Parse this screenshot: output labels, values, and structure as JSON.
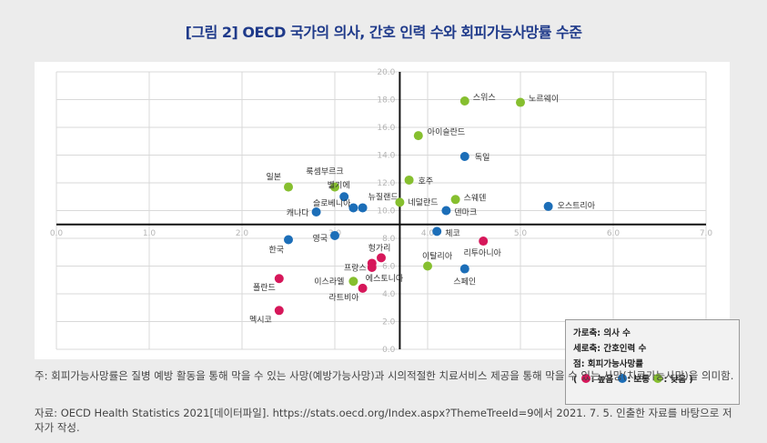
{
  "title": "[그림 2] OECD 국가의 의사, 간호 인력 수와 회피가능사망률 수준",
  "chart_data": {
    "type": "scatter",
    "xlim": [
      0,
      7
    ],
    "ylim": [
      0,
      20
    ],
    "x_ticks": [
      "0.0",
      "1.0",
      "2.0",
      "3.0",
      "4.0",
      "5.0",
      "6.0",
      "7.0"
    ],
    "y_ticks": [
      "0.0",
      "2.0",
      "4.0",
      "6.0",
      "8.0",
      "10.0",
      "12.0",
      "14.0",
      "16.0",
      "18.0",
      "20.0"
    ],
    "x_axis_cross": 9.0,
    "y_axis_cross": 3.7,
    "grid": true,
    "colors": {
      "high": "#d6175a",
      "medium": "#1c6eb8",
      "low": "#86bf2f"
    },
    "points": [
      {
        "label": "스위스",
        "x": 4.4,
        "y": 17.9,
        "level": "low"
      },
      {
        "label": "노르웨이",
        "x": 5.0,
        "y": 17.8,
        "level": "low"
      },
      {
        "label": "아이슬란드",
        "x": 3.9,
        "y": 15.4,
        "level": "low"
      },
      {
        "label": "독일",
        "x": 4.4,
        "y": 13.9,
        "level": "medium"
      },
      {
        "label": "룩셈부르크",
        "x": 3.0,
        "y": 11.7,
        "level": "low"
      },
      {
        "label": "일본",
        "x": 2.5,
        "y": 11.7,
        "level": "low"
      },
      {
        "label": "호주",
        "x": 3.8,
        "y": 12.2,
        "level": "low"
      },
      {
        "label": "벨기에",
        "x": 3.1,
        "y": 11.0,
        "level": "medium"
      },
      {
        "label": "뉴질랜드",
        "x": 3.3,
        "y": 10.2,
        "level": "medium"
      },
      {
        "label": "슬로베니아",
        "x": 3.2,
        "y": 10.2,
        "level": "medium"
      },
      {
        "label": "네덜란드",
        "x": 3.7,
        "y": 10.6,
        "level": "low"
      },
      {
        "label": "스웨덴",
        "x": 4.3,
        "y": 10.8,
        "level": "low"
      },
      {
        "label": "오스트리아",
        "x": 5.3,
        "y": 10.3,
        "level": "medium"
      },
      {
        "label": "캐나다",
        "x": 2.8,
        "y": 9.9,
        "level": "medium"
      },
      {
        "label": "덴마크",
        "x": 4.2,
        "y": 10.0,
        "level": "medium"
      },
      {
        "label": "체코",
        "x": 4.1,
        "y": 8.5,
        "level": "medium"
      },
      {
        "label": "한국",
        "x": 2.5,
        "y": 7.9,
        "level": "medium"
      },
      {
        "label": "영국",
        "x": 3.0,
        "y": 8.2,
        "level": "medium"
      },
      {
        "label": "리투아니아",
        "x": 4.6,
        "y": 7.8,
        "level": "high"
      },
      {
        "label": "헝가리",
        "x": 3.5,
        "y": 6.6,
        "level": "high"
      },
      {
        "label": "프랑스",
        "x": 3.4,
        "y": 6.2,
        "level": "high"
      },
      {
        "label": "이탈리아",
        "x": 4.0,
        "y": 6.0,
        "level": "low"
      },
      {
        "label": "스페인",
        "x": 4.4,
        "y": 5.8,
        "level": "medium"
      },
      {
        "label": "에스토니아",
        "x": 3.4,
        "y": 5.9,
        "level": "high"
      },
      {
        "label": "이스라엘",
        "x": 3.2,
        "y": 4.9,
        "level": "low"
      },
      {
        "label": "폴란드",
        "x": 2.4,
        "y": 5.1,
        "level": "high"
      },
      {
        "label": "라트비아",
        "x": 3.3,
        "y": 4.4,
        "level": "high"
      },
      {
        "label": "멕시코",
        "x": 2.4,
        "y": 2.8,
        "level": "high"
      }
    ]
  },
  "legend": {
    "line1": "가로축: 의사 수",
    "line2": "세로축: 간호인력 수",
    "line3": "점: 회피가능사망률",
    "open": "(",
    "high": ": 높음",
    "medium": ": 보통",
    "low": ": 낮음",
    "close": ")"
  },
  "notes": {
    "note1": "주: 회피가능사망률은 질병 예방 활동을 통해 막을 수 있는 사망(예방가능사망)과 시의적절한 치료서비스 제공을 통해 막을 수 있는 사망(치료가능사망)을 의미함.",
    "note2": "자료: OECD Health Statistics 2021[데이터파일]. https://stats.oecd.org/Index.aspx?ThemeTreeId=9에서 2021. 7. 5. 인출한 자료를 바탕으로 저자가 작성."
  }
}
